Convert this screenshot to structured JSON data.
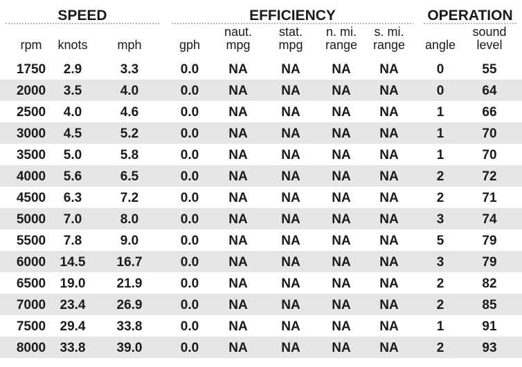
{
  "groups": [
    "SPEED",
    "EFFICIENCY",
    "OPERATION"
  ],
  "columns": [
    [
      "rpm"
    ],
    [
      "knots"
    ],
    [
      "mph"
    ],
    [
      "gph"
    ],
    [
      "naut.",
      "mpg"
    ],
    [
      "stat.",
      "mpg"
    ],
    [
      "n. mi.",
      "range"
    ],
    [
      "s. mi.",
      "range"
    ],
    [
      "angle"
    ],
    [
      "sound",
      "level"
    ]
  ],
  "rows": [
    [
      "1750",
      "2.9",
      "3.3",
      "0.0",
      "NA",
      "NA",
      "NA",
      "NA",
      "0",
      "55"
    ],
    [
      "2000",
      "3.5",
      "4.0",
      "0.0",
      "NA",
      "NA",
      "NA",
      "NA",
      "0",
      "64"
    ],
    [
      "2500",
      "4.0",
      "4.6",
      "0.0",
      "NA",
      "NA",
      "NA",
      "NA",
      "1",
      "66"
    ],
    [
      "3000",
      "4.5",
      "5.2",
      "0.0",
      "NA",
      "NA",
      "NA",
      "NA",
      "1",
      "70"
    ],
    [
      "3500",
      "5.0",
      "5.8",
      "0.0",
      "NA",
      "NA",
      "NA",
      "NA",
      "1",
      "70"
    ],
    [
      "4000",
      "5.6",
      "6.5",
      "0.0",
      "NA",
      "NA",
      "NA",
      "NA",
      "2",
      "72"
    ],
    [
      "4500",
      "6.3",
      "7.2",
      "0.0",
      "NA",
      "NA",
      "NA",
      "NA",
      "2",
      "71"
    ],
    [
      "5000",
      "7.0",
      "8.0",
      "0.0",
      "NA",
      "NA",
      "NA",
      "NA",
      "3",
      "74"
    ],
    [
      "5500",
      "7.8",
      "9.0",
      "0.0",
      "NA",
      "NA",
      "NA",
      "NA",
      "5",
      "79"
    ],
    [
      "6000",
      "14.5",
      "16.7",
      "0.0",
      "NA",
      "NA",
      "NA",
      "NA",
      "3",
      "79"
    ],
    [
      "6500",
      "19.0",
      "21.9",
      "0.0",
      "NA",
      "NA",
      "NA",
      "NA",
      "2",
      "82"
    ],
    [
      "7000",
      "23.4",
      "26.9",
      "0.0",
      "NA",
      "NA",
      "NA",
      "NA",
      "2",
      "85"
    ],
    [
      "7500",
      "29.4",
      "33.8",
      "0.0",
      "NA",
      "NA",
      "NA",
      "NA",
      "1",
      "91"
    ],
    [
      "8000",
      "33.8",
      "39.0",
      "0.0",
      "NA",
      "NA",
      "NA",
      "NA",
      "2",
      "93"
    ]
  ]
}
